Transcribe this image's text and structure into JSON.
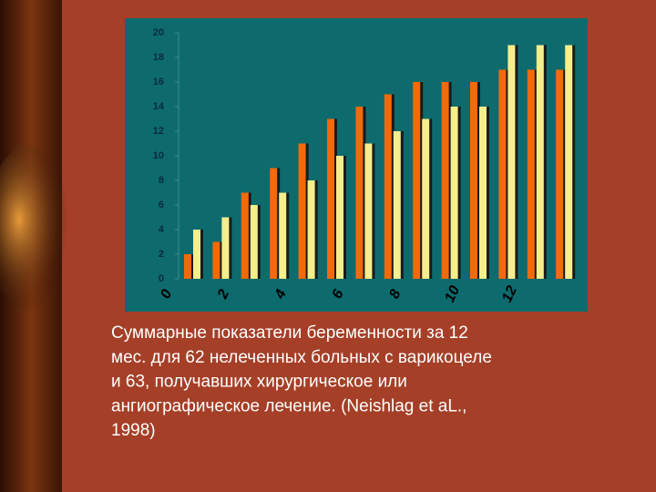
{
  "chart_data": {
    "type": "bar",
    "categories": [
      "0",
      null,
      "2",
      null,
      "4",
      null,
      "6",
      null,
      "8",
      null,
      "10",
      null,
      "12",
      null
    ],
    "series": [
      {
        "color": "#f26a0a",
        "values": [
          2,
          3,
          7,
          9,
          11,
          13,
          14,
          15,
          16,
          16,
          16,
          17,
          17,
          17
        ]
      },
      {
        "color": "#f5ee8c",
        "values": [
          4,
          5,
          6,
          7,
          8,
          10,
          11,
          12,
          13,
          14,
          14,
          19,
          19,
          19
        ]
      }
    ],
    "ylim": [
      0,
      20
    ],
    "yticks": [
      0,
      2,
      4,
      6,
      8,
      10,
      12,
      14,
      16,
      18,
      20
    ]
  },
  "caption": [
    "Суммарные показатели беременности за 12",
    "мес. для 62 нелеченных больных с варикоцеле",
    "и 63, получавших хирургическое или",
    "ангиографическое лечение. (Neishlag et aL.,",
    "1998)"
  ]
}
